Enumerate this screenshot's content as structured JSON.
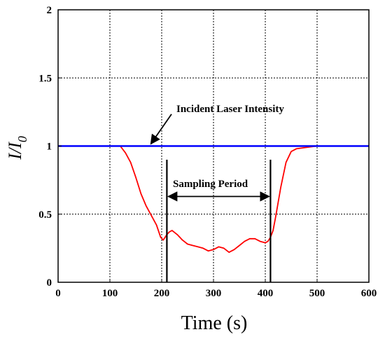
{
  "chart_data": {
    "type": "line",
    "xlabel": "Time (s)",
    "ylabel_main": "I/I",
    "ylabel_sub": "0",
    "xlim": [
      0,
      600
    ],
    "ylim": [
      0,
      2
    ],
    "x_ticks": [
      "0",
      "100",
      "200",
      "300",
      "400",
      "500",
      "600"
    ],
    "x_tick_values": [
      0,
      100,
      200,
      300,
      400,
      500,
      600
    ],
    "y_ticks": [
      "0",
      "0.5",
      "1",
      "1.5",
      "2"
    ],
    "y_tick_values": [
      0,
      0.5,
      1,
      1.5,
      2
    ],
    "grid": true,
    "colors": {
      "sample": "#ff0000",
      "incident": "#0000ff",
      "axes": "#000000",
      "grid": "#000000"
    },
    "series": [
      {
        "color": "#0000ff",
        "x": [
          0,
          50,
          100,
          150,
          200,
          250,
          300,
          350,
          400,
          450,
          500,
          550,
          600
        ],
        "y": [
          1.0,
          1.0,
          1.0,
          1.0,
          1.0,
          1.0,
          1.0,
          1.0,
          1.0,
          1.0,
          1.0,
          1.0,
          1.0
        ]
      },
      {
        "color": "#ff0000",
        "x": [
          0,
          50,
          100,
          120,
          130,
          140,
          150,
          160,
          170,
          180,
          190,
          198,
          203,
          210,
          215,
          220,
          230,
          240,
          250,
          260,
          270,
          280,
          290,
          300,
          310,
          320,
          330,
          340,
          350,
          360,
          370,
          380,
          390,
          400,
          405,
          410,
          415,
          420,
          430,
          440,
          450,
          460,
          480,
          500,
          550,
          600
        ],
        "y": [
          1.0,
          1.0,
          1.0,
          1.0,
          0.95,
          0.88,
          0.77,
          0.65,
          0.56,
          0.49,
          0.42,
          0.33,
          0.31,
          0.35,
          0.37,
          0.38,
          0.35,
          0.31,
          0.28,
          0.27,
          0.26,
          0.25,
          0.23,
          0.24,
          0.26,
          0.25,
          0.22,
          0.24,
          0.27,
          0.3,
          0.32,
          0.32,
          0.3,
          0.29,
          0.3,
          0.33,
          0.38,
          0.48,
          0.7,
          0.88,
          0.96,
          0.98,
          0.99,
          1.0,
          1.0,
          1.0
        ]
      }
    ],
    "annotations": [
      {
        "text": "Incident Laser Intensity",
        "arrow_to": [
          175,
          1.0
        ]
      },
      {
        "text": "Sampling Period",
        "range": [
          210,
          410
        ],
        "y": 0.63,
        "marker_top": 0.9
      }
    ]
  }
}
